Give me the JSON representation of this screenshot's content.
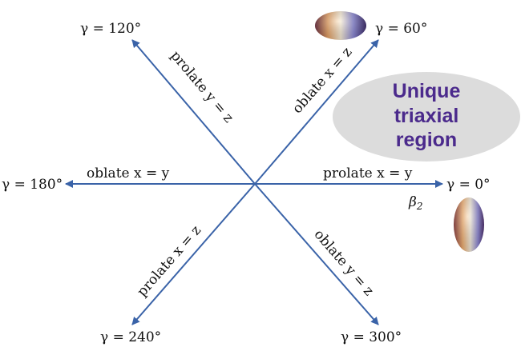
{
  "colors": {
    "arrow": "#3a63a8",
    "region_fill": "#dcdcdc",
    "region_text": "#4b2a8c"
  },
  "axes": {
    "gamma_0": "γ = 0°",
    "gamma_60": "γ = 60°",
    "gamma_120": "γ = 120°",
    "gamma_180": "γ = 180°",
    "gamma_240": "γ = 240°",
    "gamma_300": "γ = 300°",
    "beta": "β",
    "beta_sub": "2"
  },
  "rays": {
    "prolate_xy": "prolate x = y",
    "oblate_xz": "oblate x = z",
    "prolate_yz": "prolate y = z",
    "oblate_xy": "oblate x = y",
    "prolate_xz": "prolate x = z",
    "oblate_yz": "oblate y = z"
  },
  "region": {
    "line1": "Unique",
    "line2": "triaxial",
    "line3": "region"
  },
  "icons": [
    "oblate-ellipsoid-icon",
    "prolate-ellipsoid-icon"
  ]
}
